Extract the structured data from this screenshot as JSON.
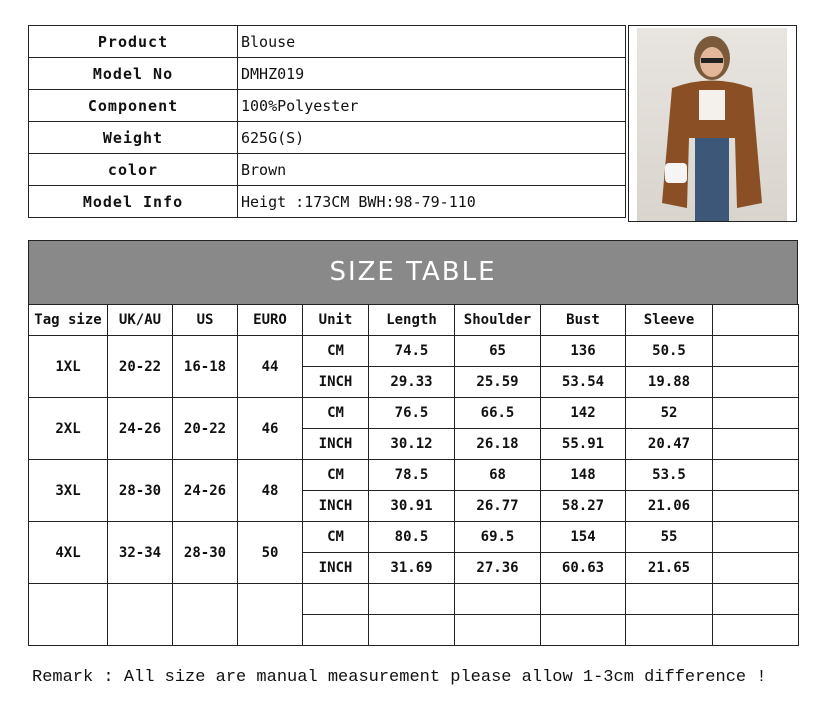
{
  "info": [
    {
      "label": "Product",
      "value": "Blouse"
    },
    {
      "label": "Model No",
      "value": "DMHZ019"
    },
    {
      "label": "Component",
      "value": "100%Polyester"
    },
    {
      "label": "Weight",
      "value": "625G(S)"
    },
    {
      "label": "color",
      "value": "Brown"
    },
    {
      "label": "Model Info",
      "value": "Heigt :173CM BWH:98-79-110"
    }
  ],
  "photo": {
    "alt": "model wearing brown corduroy shirt",
    "shirt_color": "#8a4f25"
  },
  "size_table": {
    "title": "SIZE TABLE",
    "headers": [
      "Tag size",
      "UK/AU",
      "US",
      "EURO",
      "Unit",
      "Length",
      "Shoulder",
      "Bust",
      "Sleeve",
      ""
    ],
    "rows": [
      {
        "tag": "1XL",
        "uk": "20-22",
        "us": "16-18",
        "euro": "44",
        "cm": [
          "74.5",
          "65",
          "136",
          "50.5"
        ],
        "inch": [
          "29.33",
          "25.59",
          "53.54",
          "19.88"
        ]
      },
      {
        "tag": "2XL",
        "uk": "24-26",
        "us": "20-22",
        "euro": "46",
        "cm": [
          "76.5",
          "66.5",
          "142",
          "52"
        ],
        "inch": [
          "30.12",
          "26.18",
          "55.91",
          "20.47"
        ]
      },
      {
        "tag": "3XL",
        "uk": "28-30",
        "us": "24-26",
        "euro": "48",
        "cm": [
          "78.5",
          "68",
          "148",
          "53.5"
        ],
        "inch": [
          "30.91",
          "26.77",
          "58.27",
          "21.06"
        ]
      },
      {
        "tag": "4XL",
        "uk": "32-34",
        "us": "28-30",
        "euro": "50",
        "cm": [
          "80.5",
          "69.5",
          "154",
          "55"
        ],
        "inch": [
          "31.69",
          "27.36",
          "60.63",
          "21.65"
        ]
      }
    ],
    "unit_cm": "CM",
    "unit_inch": "INCH"
  },
  "remark": "Remark : All size are manual measurement please allow 1-3cm difference !"
}
